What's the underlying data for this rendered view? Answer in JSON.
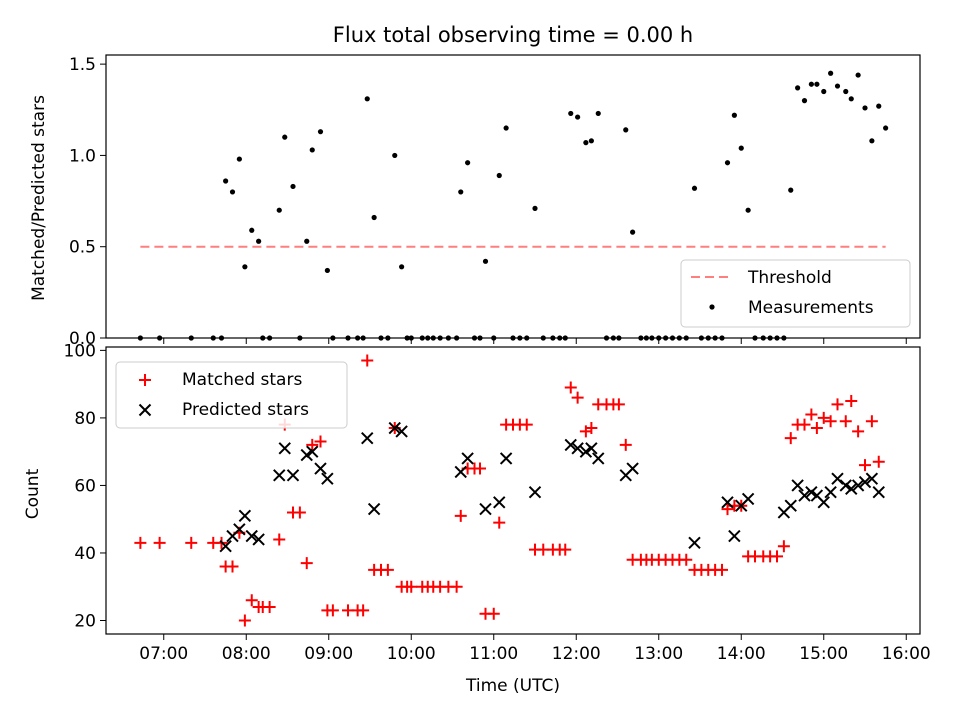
{
  "chart_data": [
    {
      "type": "scatter",
      "title": "Flux total observing time = 0.00 h",
      "xlabel": "",
      "ylabel": "Matched/Predicted stars",
      "xlim": [
        "06:18",
        "16:10"
      ],
      "ylim": [
        0,
        1.55
      ],
      "yticks": [
        "0.0",
        "0.5",
        "1.0",
        "1.5"
      ],
      "legend_position": "lower-right",
      "threshold": {
        "name": "Threshold",
        "value": 0.5,
        "x_from": "06:43",
        "x_to": "15:45",
        "color": "#ff7f7f"
      },
      "series": [
        {
          "name": "Measurements",
          "color": "#000000",
          "points": [
            [
              "06:43",
              0
            ],
            [
              "06:57",
              0
            ],
            [
              "07:20",
              0
            ],
            [
              "07:36",
              0
            ],
            [
              "07:42",
              0
            ],
            [
              "07:45",
              0.86
            ],
            [
              "07:50",
              0.8
            ],
            [
              "07:55",
              0.98
            ],
            [
              "07:59",
              0.39
            ],
            [
              "08:04",
              0.59
            ],
            [
              "08:09",
              0.53
            ],
            [
              "08:12",
              0
            ],
            [
              "08:17",
              0
            ],
            [
              "08:24",
              0.7
            ],
            [
              "08:28",
              1.1
            ],
            [
              "08:34",
              0.83
            ],
            [
              "08:39",
              0
            ],
            [
              "08:44",
              0.53
            ],
            [
              "08:48",
              1.03
            ],
            [
              "08:54",
              1.13
            ],
            [
              "08:59",
              0.37
            ],
            [
              "09:03",
              0
            ],
            [
              "09:14",
              0
            ],
            [
              "09:21",
              0
            ],
            [
              "09:25",
              0
            ],
            [
              "09:28",
              1.31
            ],
            [
              "09:33",
              0.66
            ],
            [
              "09:38",
              0
            ],
            [
              "09:43",
              0
            ],
            [
              "09:48",
              1.0
            ],
            [
              "09:53",
              0.39
            ],
            [
              "09:57",
              0
            ],
            [
              "10:00",
              0
            ],
            [
              "10:08",
              0
            ],
            [
              "10:12",
              0
            ],
            [
              "10:16",
              0
            ],
            [
              "10:21",
              0
            ],
            [
              "10:27",
              0
            ],
            [
              "10:33",
              0
            ],
            [
              "10:36",
              0.8
            ],
            [
              "10:41",
              0.96
            ],
            [
              "10:46",
              0
            ],
            [
              "10:50",
              0
            ],
            [
              "10:54",
              0.42
            ],
            [
              "11:00",
              0
            ],
            [
              "11:04",
              0.89
            ],
            [
              "11:09",
              1.15
            ],
            [
              "11:14",
              0
            ],
            [
              "11:19",
              0
            ],
            [
              "11:24",
              0
            ],
            [
              "11:30",
              0.71
            ],
            [
              "11:36",
              0
            ],
            [
              "11:43",
              0
            ],
            [
              "11:48",
              0
            ],
            [
              "11:52",
              0
            ],
            [
              "11:56",
              1.23
            ],
            [
              "12:01",
              1.21
            ],
            [
              "12:07",
              1.07
            ],
            [
              "12:11",
              1.08
            ],
            [
              "12:16",
              1.23
            ],
            [
              "12:22",
              0
            ],
            [
              "12:27",
              0
            ],
            [
              "12:31",
              0
            ],
            [
              "12:36",
              1.14
            ],
            [
              "12:41",
              0.58
            ],
            [
              "12:47",
              0
            ],
            [
              "12:51",
              0
            ],
            [
              "12:55",
              0
            ],
            [
              "13:00",
              0
            ],
            [
              "13:05",
              0
            ],
            [
              "13:10",
              0
            ],
            [
              "13:15",
              0
            ],
            [
              "13:20",
              0
            ],
            [
              "13:26",
              0.82
            ],
            [
              "13:31",
              0
            ],
            [
              "13:36",
              0
            ],
            [
              "13:41",
              0
            ],
            [
              "13:46",
              0
            ],
            [
              "13:50",
              0.96
            ],
            [
              "13:55",
              1.22
            ],
            [
              "14:00",
              1.04
            ],
            [
              "14:05",
              0.7
            ],
            [
              "14:10",
              0
            ],
            [
              "14:16",
              0
            ],
            [
              "14:21",
              0
            ],
            [
              "14:26",
              0
            ],
            [
              "14:31",
              0
            ],
            [
              "14:36",
              0.81
            ],
            [
              "14:41",
              1.37
            ],
            [
              "14:46",
              1.3
            ],
            [
              "14:51",
              1.39
            ],
            [
              "14:55",
              1.39
            ],
            [
              "15:00",
              1.35
            ],
            [
              "15:05",
              1.45
            ],
            [
              "15:10",
              1.38
            ],
            [
              "15:16",
              1.35
            ],
            [
              "15:20",
              1.31
            ],
            [
              "15:25",
              1.44
            ],
            [
              "15:30",
              1.26
            ],
            [
              "15:35",
              1.08
            ],
            [
              "15:40",
              1.27
            ],
            [
              "15:45",
              1.15
            ]
          ]
        }
      ]
    },
    {
      "type": "scatter",
      "title": "",
      "xlabel": "Time (UTC)",
      "ylabel": "Count",
      "xlim": [
        "06:18",
        "16:10"
      ],
      "ylim": [
        16,
        101
      ],
      "yticks": [
        "20",
        "40",
        "60",
        "80",
        "100"
      ],
      "xticks": [
        "07:00",
        "08:00",
        "09:00",
        "10:00",
        "11:00",
        "12:00",
        "13:00",
        "14:00",
        "15:00",
        "16:00"
      ],
      "legend_position": "upper-left",
      "series": [
        {
          "name": "Matched stars",
          "marker": "plus",
          "color": "#ff0000",
          "points": [
            [
              "06:43",
              43
            ],
            [
              "06:57",
              43
            ],
            [
              "07:20",
              43
            ],
            [
              "07:36",
              43
            ],
            [
              "07:42",
              43
            ],
            [
              "07:45",
              36
            ],
            [
              "07:50",
              36
            ],
            [
              "07:55",
              46
            ],
            [
              "07:59",
              20
            ],
            [
              "08:04",
              26
            ],
            [
              "08:09",
              24
            ],
            [
              "08:12",
              24
            ],
            [
              "08:17",
              24
            ],
            [
              "08:24",
              44
            ],
            [
              "08:28",
              78
            ],
            [
              "08:34",
              52
            ],
            [
              "08:39",
              52
            ],
            [
              "08:44",
              37
            ],
            [
              "08:48",
              72
            ],
            [
              "08:54",
              73
            ],
            [
              "08:59",
              23
            ],
            [
              "09:03",
              23
            ],
            [
              "09:14",
              23
            ],
            [
              "09:21",
              23
            ],
            [
              "09:25",
              23
            ],
            [
              "09:28",
              97
            ],
            [
              "09:33",
              35
            ],
            [
              "09:38",
              35
            ],
            [
              "09:43",
              35
            ],
            [
              "09:48",
              77
            ],
            [
              "09:53",
              30
            ],
            [
              "09:57",
              30
            ],
            [
              "10:00",
              30
            ],
            [
              "10:08",
              30
            ],
            [
              "10:12",
              30
            ],
            [
              "10:16",
              30
            ],
            [
              "10:21",
              30
            ],
            [
              "10:27",
              30
            ],
            [
              "10:33",
              30
            ],
            [
              "10:36",
              51
            ],
            [
              "10:41",
              65
            ],
            [
              "10:46",
              65
            ],
            [
              "10:50",
              65
            ],
            [
              "10:54",
              22
            ],
            [
              "11:00",
              22
            ],
            [
              "11:04",
              49
            ],
            [
              "11:09",
              78
            ],
            [
              "11:14",
              78
            ],
            [
              "11:19",
              78
            ],
            [
              "11:24",
              78
            ],
            [
              "11:30",
              41
            ],
            [
              "11:36",
              41
            ],
            [
              "11:43",
              41
            ],
            [
              "11:48",
              41
            ],
            [
              "11:52",
              41
            ],
            [
              "11:56",
              89
            ],
            [
              "12:01",
              86
            ],
            [
              "12:07",
              76
            ],
            [
              "12:11",
              77
            ],
            [
              "12:16",
              84
            ],
            [
              "12:22",
              84
            ],
            [
              "12:27",
              84
            ],
            [
              "12:31",
              84
            ],
            [
              "12:36",
              72
            ],
            [
              "12:41",
              38
            ],
            [
              "12:47",
              38
            ],
            [
              "12:51",
              38
            ],
            [
              "12:55",
              38
            ],
            [
              "13:00",
              38
            ],
            [
              "13:05",
              38
            ],
            [
              "13:10",
              38
            ],
            [
              "13:15",
              38
            ],
            [
              "13:20",
              38
            ],
            [
              "13:26",
              35
            ],
            [
              "13:31",
              35
            ],
            [
              "13:36",
              35
            ],
            [
              "13:41",
              35
            ],
            [
              "13:46",
              35
            ],
            [
              "13:50",
              53
            ],
            [
              "13:55",
              54
            ],
            [
              "14:00",
              54
            ],
            [
              "14:05",
              39
            ],
            [
              "14:10",
              39
            ],
            [
              "14:16",
              39
            ],
            [
              "14:21",
              39
            ],
            [
              "14:26",
              39
            ],
            [
              "14:31",
              42
            ],
            [
              "14:36",
              74
            ],
            [
              "14:41",
              78
            ],
            [
              "14:46",
              78
            ],
            [
              "14:51",
              81
            ],
            [
              "14:55",
              77
            ],
            [
              "15:00",
              80
            ],
            [
              "15:05",
              79
            ],
            [
              "15:10",
              84
            ],
            [
              "15:16",
              79
            ],
            [
              "15:20",
              85
            ],
            [
              "15:25",
              76
            ],
            [
              "15:30",
              66
            ],
            [
              "15:35",
              79
            ],
            [
              "15:40",
              67
            ]
          ]
        },
        {
          "name": "Predicted stars",
          "marker": "x",
          "color": "#000000",
          "points": [
            [
              "07:45",
              42
            ],
            [
              "07:50",
              45
            ],
            [
              "07:55",
              47
            ],
            [
              "07:59",
              51
            ],
            [
              "08:04",
              45
            ],
            [
              "08:09",
              44
            ],
            [
              "08:24",
              63
            ],
            [
              "08:28",
              71
            ],
            [
              "08:34",
              63
            ],
            [
              "08:44",
              69
            ],
            [
              "08:48",
              70
            ],
            [
              "08:54",
              65
            ],
            [
              "08:59",
              62
            ],
            [
              "09:28",
              74
            ],
            [
              "09:33",
              53
            ],
            [
              "09:48",
              77
            ],
            [
              "09:53",
              76
            ],
            [
              "10:36",
              64
            ],
            [
              "10:41",
              68
            ],
            [
              "10:54",
              53
            ],
            [
              "11:04",
              55
            ],
            [
              "11:09",
              68
            ],
            [
              "11:30",
              58
            ],
            [
              "11:56",
              72
            ],
            [
              "12:01",
              71
            ],
            [
              "12:07",
              70
            ],
            [
              "12:11",
              71
            ],
            [
              "12:16",
              68
            ],
            [
              "12:36",
              63
            ],
            [
              "12:41",
              65
            ],
            [
              "13:26",
              43
            ],
            [
              "13:50",
              55
            ],
            [
              "13:55",
              45
            ],
            [
              "14:00",
              54
            ],
            [
              "14:05",
              56
            ],
            [
              "14:31",
              52
            ],
            [
              "14:36",
              54
            ],
            [
              "14:41",
              60
            ],
            [
              "14:46",
              57
            ],
            [
              "14:51",
              58
            ],
            [
              "14:55",
              57
            ],
            [
              "15:00",
              55
            ],
            [
              "15:05",
              58
            ],
            [
              "15:10",
              62
            ],
            [
              "15:16",
              60
            ],
            [
              "15:20",
              59
            ],
            [
              "15:25",
              60
            ],
            [
              "15:30",
              61
            ],
            [
              "15:35",
              62
            ],
            [
              "15:40",
              58
            ]
          ]
        }
      ]
    }
  ]
}
